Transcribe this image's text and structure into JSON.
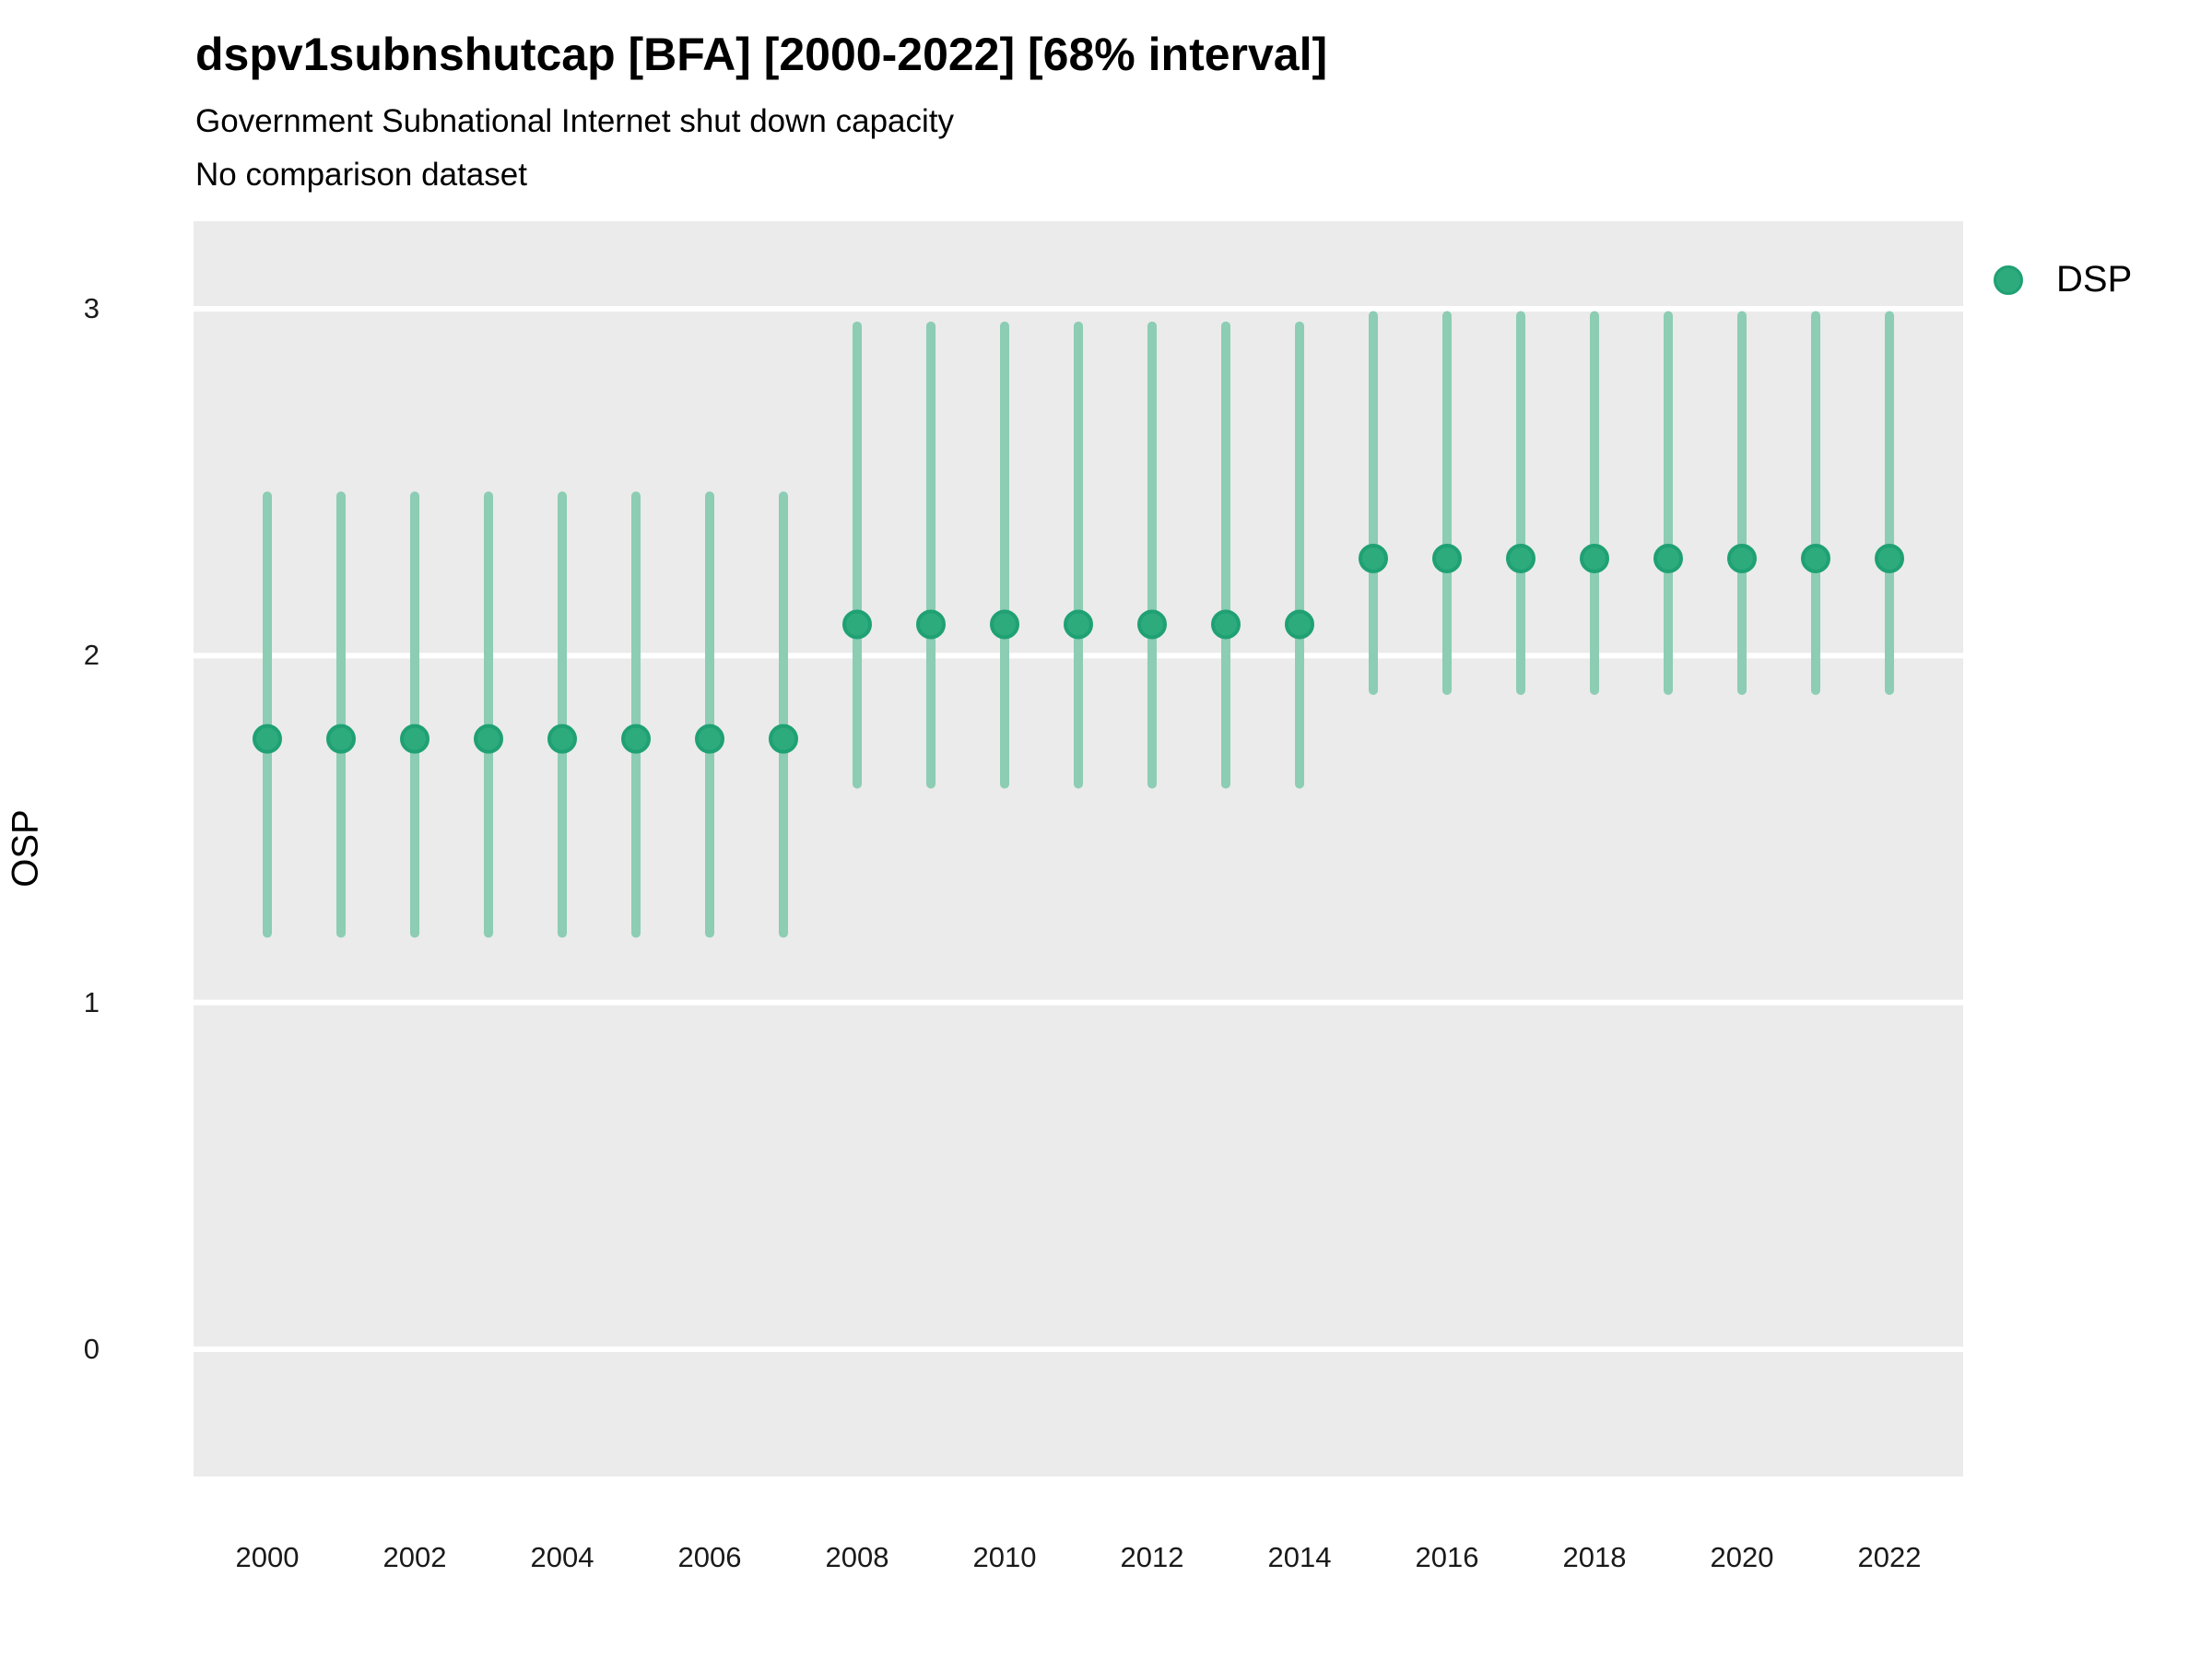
{
  "header": {
    "title": "dspv1subnshutcap [BFA] [2000-2022] [68% interval]",
    "subtitle_line1": "Government Subnational Internet shut down capacity",
    "subtitle_line2": "No comparison dataset"
  },
  "legend": {
    "label": "DSP",
    "position": "right-top",
    "marker": "circle",
    "marker_color": "#2eab7d"
  },
  "colors": {
    "panel_background": "#ebebeb",
    "gridline": "#ffffff",
    "interval_bar": "#8ccdb4",
    "point_fill": "#2eab7d",
    "point_stroke": "#1fa173",
    "text": "#000000"
  },
  "chart_data": {
    "type": "scatter",
    "subtype": "pointrange",
    "title": "dspv1subnshutcap [BFA] [2000-2022] [68% interval]",
    "subtitle": "Government Subnational Internet shut down capacity",
    "note": "No comparison dataset",
    "interval_level": "68%",
    "xlabel": "",
    "ylabel": "OSP",
    "x": [
      2000,
      2001,
      2002,
      2003,
      2004,
      2005,
      2006,
      2007,
      2008,
      2009,
      2010,
      2011,
      2012,
      2013,
      2014,
      2015,
      2016,
      2017,
      2018,
      2019,
      2020,
      2021,
      2022
    ],
    "series": [
      {
        "name": "DSP",
        "values": [
          1.76,
          1.76,
          1.76,
          1.76,
          1.76,
          1.76,
          1.76,
          1.76,
          2.09,
          2.09,
          2.09,
          2.09,
          2.09,
          2.09,
          2.09,
          2.28,
          2.28,
          2.28,
          2.28,
          2.28,
          2.28,
          2.28,
          2.28
        ],
        "interval_low": [
          1.2,
          1.2,
          1.2,
          1.2,
          1.2,
          1.2,
          1.2,
          1.2,
          1.63,
          1.63,
          1.63,
          1.63,
          1.63,
          1.63,
          1.63,
          1.9,
          1.9,
          1.9,
          1.9,
          1.9,
          1.9,
          1.9,
          1.9
        ],
        "interval_high": [
          2.46,
          2.46,
          2.46,
          2.46,
          2.46,
          2.46,
          2.46,
          2.46,
          2.95,
          2.95,
          2.95,
          2.95,
          2.95,
          2.95,
          2.95,
          2.98,
          2.98,
          2.98,
          2.98,
          2.98,
          2.98,
          2.98,
          2.98
        ]
      }
    ],
    "xtick_labels": [
      "2000",
      "2002",
      "2004",
      "2006",
      "2008",
      "2010",
      "2012",
      "2014",
      "2016",
      "2018",
      "2020",
      "2022"
    ],
    "xtick_values": [
      2000,
      2002,
      2004,
      2006,
      2008,
      2010,
      2012,
      2014,
      2016,
      2018,
      2020,
      2022
    ],
    "ytick_labels": [
      "0",
      "1",
      "2",
      "3"
    ],
    "ytick_values": [
      0,
      1,
      2,
      3
    ],
    "ylim": [
      -0.37,
      3.25
    ],
    "xlim": [
      1999,
      2023
    ],
    "grid": "major-horizontal-only",
    "legend_position": "right-top"
  }
}
